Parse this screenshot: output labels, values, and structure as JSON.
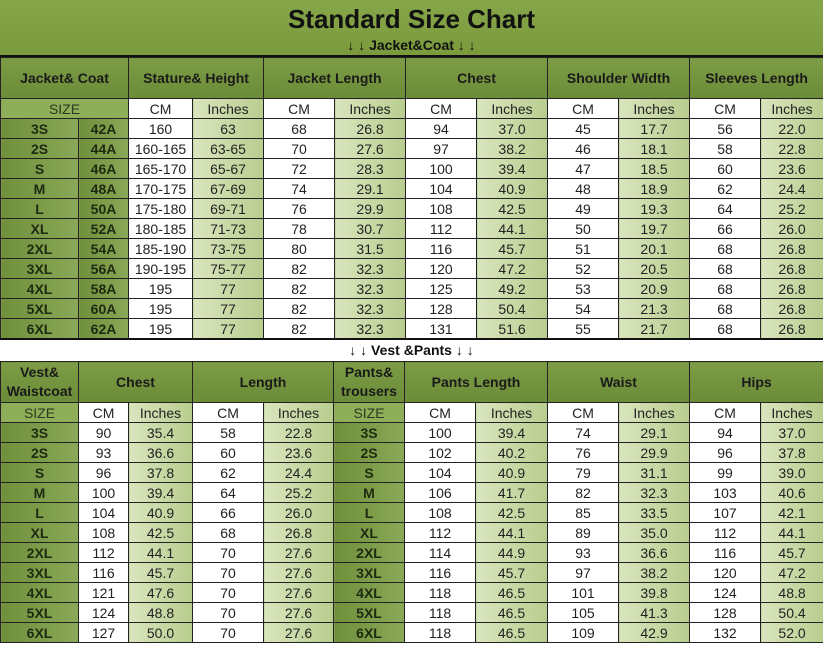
{
  "title": "Standard Size Chart",
  "jacket_section_label": "↓ ↓  Jacket&Coat  ↓ ↓",
  "vest_section_label": "↓ ↓  Vest &Pants  ↓ ↓",
  "colors": {
    "header_green": "#6f9240",
    "inches_green": "#c6d6a0",
    "size_green": "#6f8f3c"
  },
  "top": {
    "headers": [
      "Jacket& Coat",
      "Stature& Height",
      "Jacket Length",
      "Chest",
      "Shoulder Width",
      "Sleeves Length"
    ],
    "size_label": "SIZE",
    "cm_label": "CM",
    "in_label": "Inches",
    "rows": [
      [
        "3S",
        "42A",
        "160",
        "63",
        "68",
        "26.8",
        "94",
        "37.0",
        "45",
        "17.7",
        "56",
        "22.0"
      ],
      [
        "2S",
        "44A",
        "160-165",
        "63-65",
        "70",
        "27.6",
        "97",
        "38.2",
        "46",
        "18.1",
        "58",
        "22.8"
      ],
      [
        "S",
        "46A",
        "165-170",
        "65-67",
        "72",
        "28.3",
        "100",
        "39.4",
        "47",
        "18.5",
        "60",
        "23.6"
      ],
      [
        "M",
        "48A",
        "170-175",
        "67-69",
        "74",
        "29.1",
        "104",
        "40.9",
        "48",
        "18.9",
        "62",
        "24.4"
      ],
      [
        "L",
        "50A",
        "175-180",
        "69-71",
        "76",
        "29.9",
        "108",
        "42.5",
        "49",
        "19.3",
        "64",
        "25.2"
      ],
      [
        "XL",
        "52A",
        "180-185",
        "71-73",
        "78",
        "30.7",
        "112",
        "44.1",
        "50",
        "19.7",
        "66",
        "26.0"
      ],
      [
        "2XL",
        "54A",
        "185-190",
        "73-75",
        "80",
        "31.5",
        "116",
        "45.7",
        "51",
        "20.1",
        "68",
        "26.8"
      ],
      [
        "3XL",
        "56A",
        "190-195",
        "75-77",
        "82",
        "32.3",
        "120",
        "47.2",
        "52",
        "20.5",
        "68",
        "26.8"
      ],
      [
        "4XL",
        "58A",
        "195",
        "77",
        "82",
        "32.3",
        "125",
        "49.2",
        "53",
        "20.9",
        "68",
        "26.8"
      ],
      [
        "5XL",
        "60A",
        "195",
        "77",
        "82",
        "32.3",
        "128",
        "50.4",
        "54",
        "21.3",
        "68",
        "26.8"
      ],
      [
        "6XL",
        "62A",
        "195",
        "77",
        "82",
        "32.3",
        "131",
        "51.6",
        "55",
        "21.7",
        "68",
        "26.8"
      ]
    ]
  },
  "bottom": {
    "headers": [
      "Vest& Waistcoat",
      "Chest",
      "Length",
      "Pants& trousers",
      "Pants Length",
      "Waist",
      "Hips"
    ],
    "size_label": "SIZE",
    "cm_label": "CM",
    "in_label": "Inches",
    "rows": [
      [
        "3S",
        "90",
        "35.4",
        "58",
        "22.8",
        "3S",
        "100",
        "39.4",
        "74",
        "29.1",
        "94",
        "37.0"
      ],
      [
        "2S",
        "93",
        "36.6",
        "60",
        "23.6",
        "2S",
        "102",
        "40.2",
        "76",
        "29.9",
        "96",
        "37.8"
      ],
      [
        "S",
        "96",
        "37.8",
        "62",
        "24.4",
        "S",
        "104",
        "40.9",
        "79",
        "31.1",
        "99",
        "39.0"
      ],
      [
        "M",
        "100",
        "39.4",
        "64",
        "25.2",
        "M",
        "106",
        "41.7",
        "82",
        "32.3",
        "103",
        "40.6"
      ],
      [
        "L",
        "104",
        "40.9",
        "66",
        "26.0",
        "L",
        "108",
        "42.5",
        "85",
        "33.5",
        "107",
        "42.1"
      ],
      [
        "XL",
        "108",
        "42.5",
        "68",
        "26.8",
        "XL",
        "112",
        "44.1",
        "89",
        "35.0",
        "112",
        "44.1"
      ],
      [
        "2XL",
        "112",
        "44.1",
        "70",
        "27.6",
        "2XL",
        "114",
        "44.9",
        "93",
        "36.6",
        "116",
        "45.7"
      ],
      [
        "3XL",
        "116",
        "45.7",
        "70",
        "27.6",
        "3XL",
        "116",
        "45.7",
        "97",
        "38.2",
        "120",
        "47.2"
      ],
      [
        "4XL",
        "121",
        "47.6",
        "70",
        "27.6",
        "4XL",
        "118",
        "46.5",
        "101",
        "39.8",
        "124",
        "48.8"
      ],
      [
        "5XL",
        "124",
        "48.8",
        "70",
        "27.6",
        "5XL",
        "118",
        "46.5",
        "105",
        "41.3",
        "128",
        "50.4"
      ],
      [
        "6XL",
        "127",
        "50.0",
        "70",
        "27.6",
        "6XL",
        "118",
        "46.5",
        "109",
        "42.9",
        "132",
        "52.0"
      ]
    ]
  }
}
